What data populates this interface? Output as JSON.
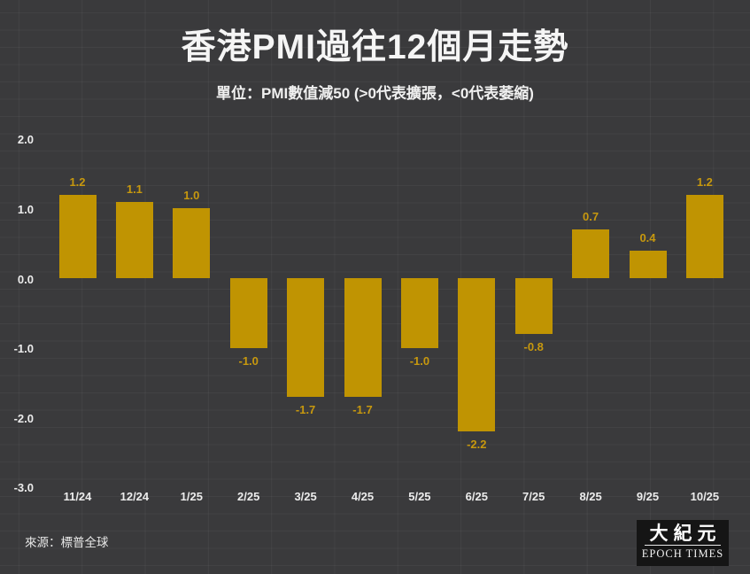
{
  "page": {
    "title": "香港PMI過往12個月走勢",
    "subtitle": "單位：PMI數值減50 (>0代表擴張，<0代表萎縮)",
    "source": "來源：標普全球",
    "background_color": "#3a3a3c"
  },
  "chart_data": {
    "type": "bar",
    "title": "香港PMI過往12個月走勢",
    "subtitle": "單位：PMI數值減50 (>0代表擴張，<0代表萎縮)",
    "categories": [
      "11/24",
      "12/24",
      "1/25",
      "2/25",
      "3/25",
      "4/25",
      "5/25",
      "6/25",
      "7/25",
      "8/25",
      "9/25",
      "10/25"
    ],
    "values": [
      1.2,
      1.1,
      1.0,
      -1.0,
      -1.7,
      -1.7,
      -1.0,
      -2.2,
      -0.8,
      0.7,
      0.4,
      1.2
    ],
    "value_labels": [
      "1.2",
      "1.1",
      "1.0",
      "-1.0",
      "-1.7",
      "-1.7",
      "-1.0",
      "-2.2",
      "-0.8",
      "0.7",
      "0.4",
      "1.2"
    ],
    "xlabel": "",
    "ylabel": "",
    "ylim": [
      -3.0,
      2.0
    ],
    "yticks": [
      2.0,
      1.0,
      0.0,
      -1.0,
      -2.0,
      -3.0
    ],
    "ytick_labels": [
      "2.0",
      "1.0",
      "0.0",
      "-1.0",
      "-2.0",
      "-3.0"
    ],
    "grid": "off",
    "legend": "none",
    "bar_color": "#c09402",
    "value_label_color": "#c7980e",
    "tick_label_color": "#ececec",
    "source": "來源：標普全球"
  },
  "logo": {
    "chinese": "大紀元",
    "english": "EPOCH TIMES"
  }
}
